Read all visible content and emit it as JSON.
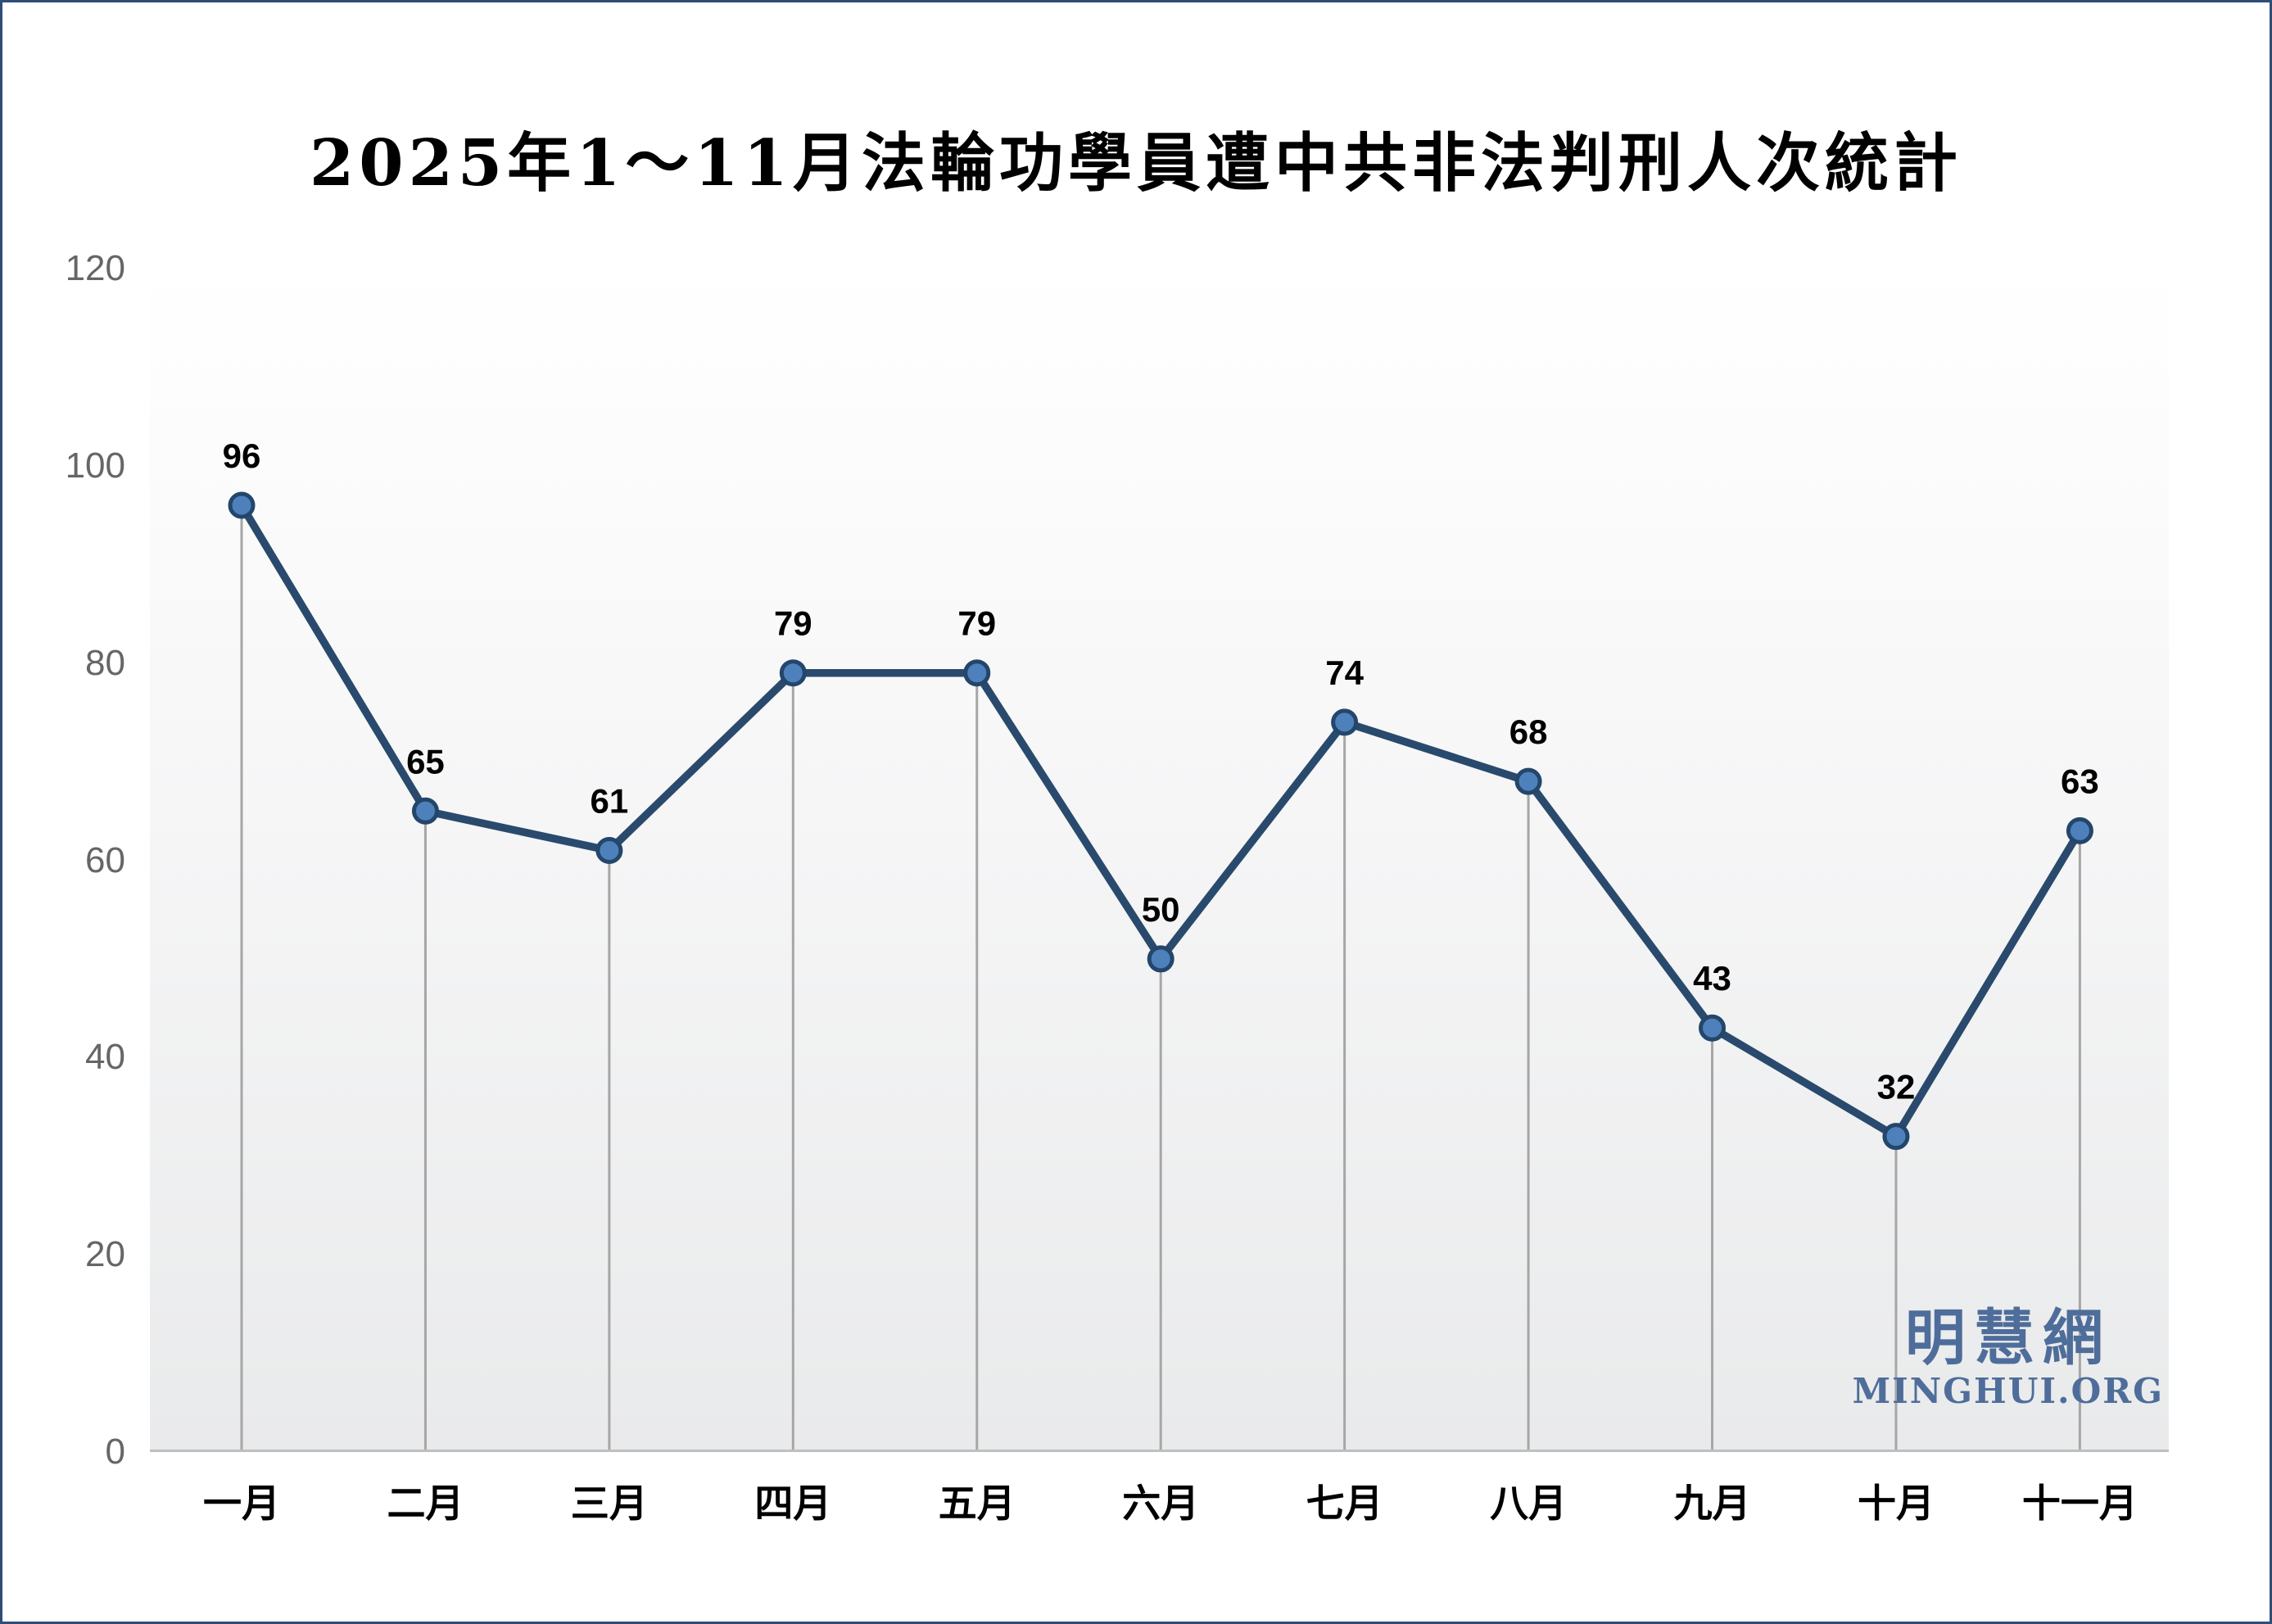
{
  "page": {
    "background": "#ffffff",
    "border_color": "#2f4d77"
  },
  "chart_data": {
    "type": "line",
    "title": "2025年1～11月法輪功學員遭中共非法判刑人次統計",
    "categories": [
      "一月",
      "二月",
      "三月",
      "四月",
      "五月",
      "六月",
      "七月",
      "八月",
      "九月",
      "十月",
      "十一月"
    ],
    "values": [
      96,
      65,
      61,
      79,
      79,
      50,
      74,
      68,
      43,
      32,
      63
    ],
    "xlabel": "",
    "ylabel": "",
    "ylim": [
      0,
      120
    ],
    "yticks": [
      0,
      20,
      40,
      60,
      80,
      100,
      120
    ],
    "grid": "off",
    "legend": "none",
    "value_labels": "above-points",
    "droplines": "vertical-to-axis",
    "colors": {
      "line": "#2a4a6d",
      "marker_fill": "#4e81bc",
      "marker_border": "#24466a",
      "dropline": "#a6a6a6",
      "axis_line": "#bfbfbf",
      "tick_label": "#666666",
      "value_label": "#000000",
      "plot_bg_top": "#ffffff",
      "plot_bg_bottom": "#e9eaeb"
    }
  },
  "watermark": {
    "cjk": "明慧網",
    "latin": "MINGHUI.ORG",
    "color": "#4e6d9a"
  }
}
